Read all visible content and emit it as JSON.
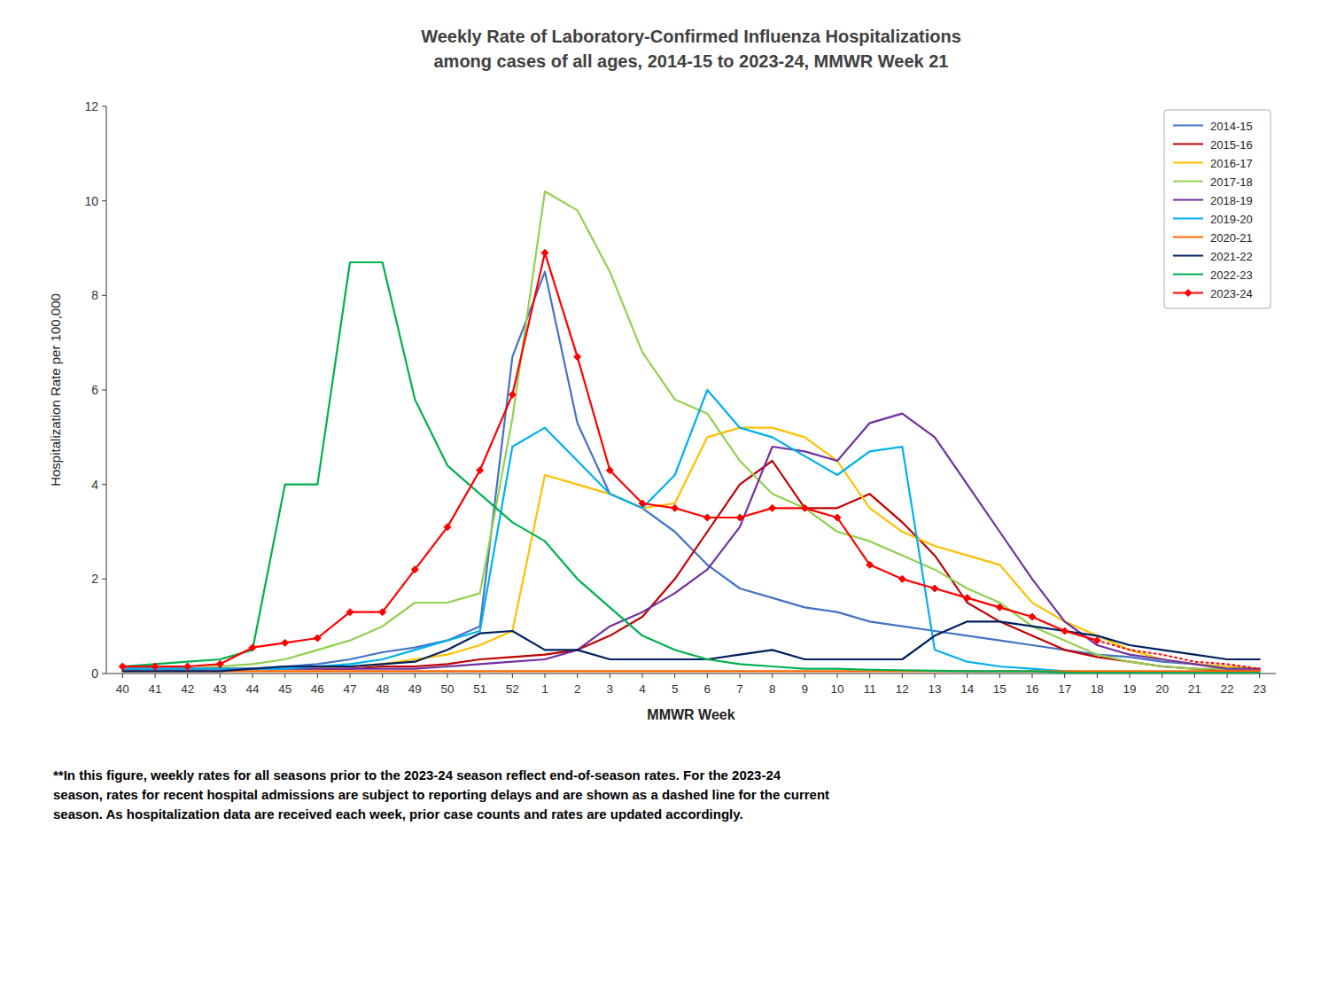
{
  "chart_data": {
    "type": "line",
    "title": "Weekly Rate of Laboratory-Confirmed Influenza Hospitalizations",
    "subtitle": "among cases of all ages, 2014-15 to 2023-24, MMWR Week 21",
    "xlabel": "MMWR Week",
    "ylabel": "Hospitalization Rate per 100,000",
    "footnote": "**In this figure, weekly rates for all seasons prior to the 2023-24 season reflect end-of-season rates. For the 2023-24\nseason, rates for recent hospital admissions are subject to reporting delays and are shown as a dashed line for the current\nseason. As hospitalization data are received each week, prior case counts and rates are updated accordingly.",
    "ylim": [
      0,
      12
    ],
    "yticks": [
      0,
      2,
      4,
      6,
      8,
      10,
      12
    ],
    "grid": false,
    "legend": "upper right",
    "categories": [
      "40",
      "41",
      "42",
      "43",
      "44",
      "45",
      "46",
      "47",
      "48",
      "49",
      "50",
      "51",
      "52",
      "1",
      "2",
      "3",
      "4",
      "5",
      "6",
      "7",
      "8",
      "9",
      "10",
      "11",
      "12",
      "13",
      "14",
      "15",
      "16",
      "17",
      "18",
      "19",
      "20",
      "21",
      "22",
      "23"
    ],
    "series": [
      {
        "name": "2014-15",
        "color": "#4472C4",
        "values": [
          0.1,
          0.1,
          0.1,
          0.1,
          0.1,
          0.15,
          0.2,
          0.3,
          0.45,
          0.55,
          0.7,
          1.0,
          6.7,
          8.5,
          5.3,
          3.8,
          3.5,
          3.0,
          2.3,
          1.8,
          1.6,
          1.4,
          1.3,
          1.1,
          1.0,
          0.9,
          0.8,
          0.7,
          0.6,
          0.5,
          0.4,
          0.35,
          0.25,
          0.2,
          0.15,
          0.1
        ]
      },
      {
        "name": "2015-16",
        "color": "#C00000",
        "values": [
          0.1,
          0.1,
          0.1,
          0.1,
          0.1,
          0.1,
          0.1,
          0.1,
          0.15,
          0.15,
          0.2,
          0.3,
          0.35,
          0.4,
          0.5,
          0.8,
          1.2,
          2.0,
          3.0,
          4.0,
          4.5,
          3.5,
          3.5,
          3.8,
          3.2,
          2.5,
          1.5,
          1.1,
          0.8,
          0.5,
          0.35,
          0.25,
          0.15,
          0.1,
          0.05,
          0.05
        ]
      },
      {
        "name": "2016-17",
        "color": "#FFC000",
        "values": [
          0.1,
          0.1,
          0.1,
          0.1,
          0.1,
          0.1,
          0.1,
          0.15,
          0.2,
          0.3,
          0.4,
          0.6,
          0.9,
          4.2,
          4.0,
          3.8,
          3.5,
          3.6,
          5.0,
          5.2,
          5.2,
          5.0,
          4.5,
          3.5,
          3.0,
          2.7,
          2.5,
          2.3,
          1.5,
          1.1,
          0.8,
          0.5,
          0.3,
          0.2,
          0.15,
          0.1
        ]
      },
      {
        "name": "2017-18",
        "color": "#92D050",
        "values": [
          0.1,
          0.1,
          0.1,
          0.15,
          0.2,
          0.3,
          0.5,
          0.7,
          1.0,
          1.5,
          1.5,
          1.7,
          5.4,
          10.2,
          9.8,
          8.5,
          6.8,
          5.8,
          5.5,
          4.5,
          3.8,
          3.5,
          3.0,
          2.8,
          2.5,
          2.2,
          1.8,
          1.5,
          1.0,
          0.7,
          0.4,
          0.25,
          0.15,
          0.1,
          0.1,
          0.1
        ]
      },
      {
        "name": "2018-19",
        "color": "#7030A0",
        "values": [
          0.1,
          0.1,
          0.1,
          0.1,
          0.1,
          0.1,
          0.1,
          0.1,
          0.1,
          0.1,
          0.15,
          0.2,
          0.25,
          0.3,
          0.5,
          1.0,
          1.3,
          1.7,
          2.2,
          3.1,
          4.8,
          4.7,
          4.5,
          5.3,
          5.5,
          5.0,
          4.0,
          3.0,
          2.0,
          1.1,
          0.6,
          0.4,
          0.3,
          0.2,
          0.1,
          0.1
        ]
      },
      {
        "name": "2019-20",
        "color": "#00B0F0",
        "values": [
          0.1,
          0.1,
          0.1,
          0.1,
          0.1,
          0.1,
          0.15,
          0.2,
          0.3,
          0.5,
          0.7,
          0.9,
          4.8,
          5.2,
          4.5,
          3.8,
          3.5,
          4.2,
          6.0,
          5.2,
          5.0,
          4.6,
          4.2,
          4.7,
          4.8,
          0.5,
          0.25,
          0.15,
          0.1,
          0.05,
          0.02,
          0.01,
          0.01,
          0.01,
          0.01,
          0.01
        ]
      },
      {
        "name": "2020-21",
        "color": "#FF6600",
        "values": [
          0.05,
          0.05,
          0.05,
          0.05,
          0.05,
          0.05,
          0.05,
          0.05,
          0.05,
          0.05,
          0.05,
          0.05,
          0.05,
          0.05,
          0.05,
          0.05,
          0.05,
          0.05,
          0.05,
          0.05,
          0.05,
          0.05,
          0.05,
          0.05,
          0.05,
          0.05,
          0.05,
          0.05,
          0.05,
          0.05,
          0.05,
          0.05,
          0.05,
          0.05,
          0.05,
          0.05
        ]
      },
      {
        "name": "2021-22",
        "color": "#002060",
        "values": [
          0.05,
          0.05,
          0.05,
          0.05,
          0.1,
          0.15,
          0.15,
          0.15,
          0.2,
          0.25,
          0.5,
          0.85,
          0.9,
          0.5,
          0.5,
          0.3,
          0.3,
          0.3,
          0.3,
          0.4,
          0.5,
          0.3,
          0.3,
          0.3,
          0.3,
          0.8,
          1.1,
          1.1,
          1.0,
          0.9,
          0.8,
          0.6,
          0.5,
          0.4,
          0.3,
          0.3
        ]
      },
      {
        "name": "2022-23",
        "color": "#00B050",
        "values": [
          0.15,
          0.2,
          0.25,
          0.3,
          0.5,
          4.0,
          4.0,
          8.7,
          8.7,
          5.8,
          4.4,
          3.8,
          3.2,
          2.8,
          2.0,
          1.4,
          0.8,
          0.5,
          0.3,
          0.2,
          0.15,
          0.1,
          0.1,
          0.08,
          0.07,
          0.06,
          0.05,
          0.05,
          0.05,
          0.02,
          0.01,
          0.01,
          0.01,
          0.01,
          0.01,
          0.01
        ]
      },
      {
        "name": "2023-24",
        "color": "#FF0000",
        "marker": "diamond",
        "dashed_from": "18",
        "values": [
          0.15,
          0.15,
          0.15,
          0.2,
          0.55,
          0.65,
          0.75,
          1.3,
          1.3,
          2.2,
          3.1,
          4.3,
          5.9,
          8.9,
          6.7,
          4.3,
          3.6,
          3.5,
          3.3,
          3.3,
          3.5,
          3.5,
          3.3,
          2.3,
          2.0,
          1.8,
          1.6,
          1.4,
          1.2,
          0.9,
          0.7,
          0.5,
          0.4,
          0.25,
          0.2,
          0.1
        ]
      }
    ]
  }
}
